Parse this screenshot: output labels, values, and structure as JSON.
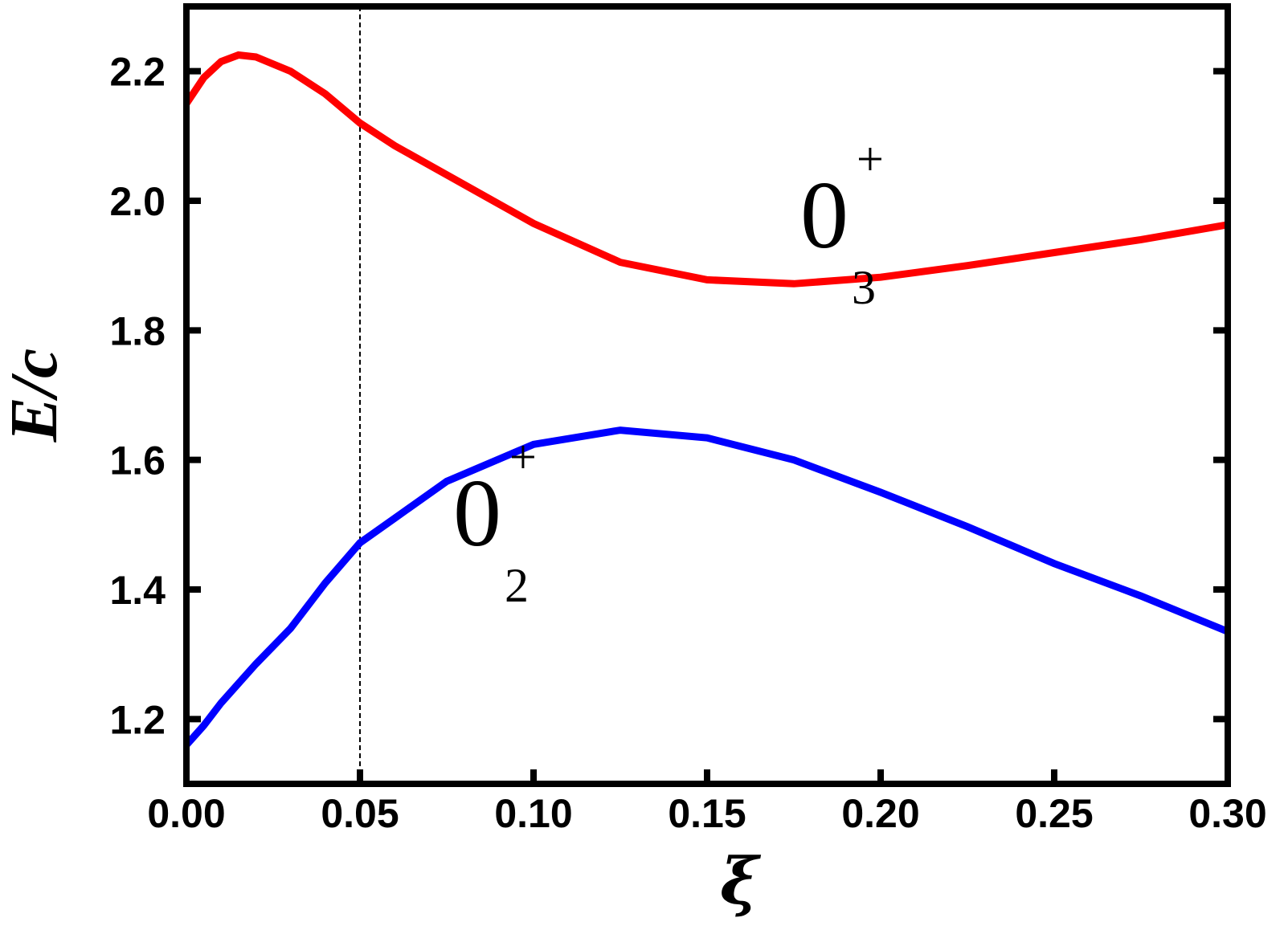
{
  "chart_data": {
    "type": "line",
    "x_label": "ξ",
    "y_label": "E/c",
    "x": [
      0,
      0.005,
      0.01,
      0.015,
      0.02,
      0.03,
      0.04,
      0.05,
      0.06,
      0.075,
      0.1,
      0.125,
      0.15,
      0.175,
      0.2,
      0.225,
      0.25,
      0.275,
      0.3
    ],
    "series": [
      {
        "color": "#ff0000",
        "values": [
          2.15,
          2.19,
          2.215,
          2.225,
          2.222,
          2.2,
          2.165,
          2.12,
          2.085,
          2.04,
          1.965,
          1.905,
          1.878,
          1.872,
          1.882,
          1.9,
          1.92,
          1.94,
          1.963
        ]
      },
      {
        "color": "#0000ff",
        "values": [
          1.16,
          1.19,
          1.225,
          1.255,
          1.285,
          1.34,
          1.41,
          1.472,
          1.51,
          1.567,
          1.624,
          1.646,
          1.634,
          1.6,
          1.55,
          1.497,
          1.44,
          1.39,
          1.335
        ]
      }
    ],
    "xlim": [
      0,
      0.3
    ],
    "xticks": [
      {
        "value": 0,
        "label": "0.00"
      },
      {
        "value": 0.05,
        "label": "0.05"
      },
      {
        "value": 0.1,
        "label": "0.10"
      },
      {
        "value": 0.15,
        "label": "0.15"
      },
      {
        "value": 0.2,
        "label": "0.20"
      },
      {
        "value": 0.25,
        "label": "0.25"
      },
      {
        "value": 0.3,
        "label": "0.30"
      }
    ],
    "ylim": [
      1.1,
      2.3
    ],
    "yticks": [
      1.2,
      1.4,
      1.6,
      1.8,
      {
        "value": 2,
        "label": "2.0"
      },
      2.2
    ],
    "vline": 0.05,
    "annotations": [
      {
        "text": "0",
        "sub": "3",
        "sup": "+",
        "x": 0.2,
        "y": 1.98
      },
      {
        "text": "0",
        "sub": "2",
        "sup": "+",
        "x": 0.1,
        "y": 1.52
      }
    ]
  }
}
